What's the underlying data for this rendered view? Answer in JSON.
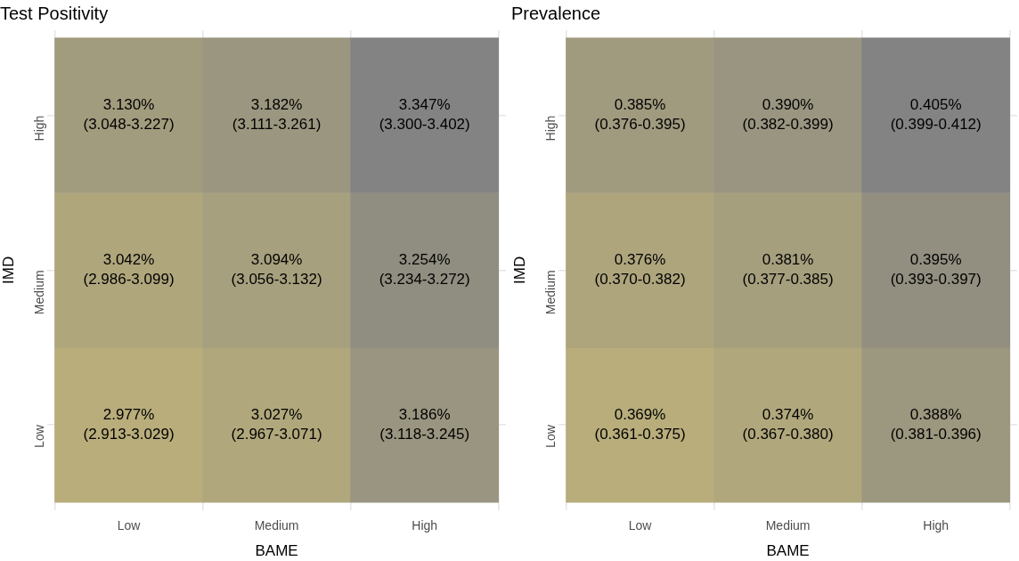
{
  "chart_data": [
    {
      "type": "heatmap",
      "title": "Test Positivity",
      "xlabel": "BAME",
      "ylabel": "IMD",
      "categories": [
        "Low",
        "Medium",
        "High"
      ],
      "y_categories": [
        "High",
        "Medium",
        "Low"
      ],
      "colors": [
        "#b8ad7b",
        "#838383"
      ],
      "grid": true,
      "cells": [
        [
          3.13,
          3.182,
          3.347
        ],
        [
          3.042,
          3.094,
          3.254
        ],
        [
          2.977,
          3.027,
          3.186
        ]
      ],
      "cell_labels": [
        [
          "3.130%",
          "3.182%",
          "3.347%"
        ],
        [
          "3.042%",
          "3.094%",
          "3.254%"
        ],
        [
          "2.977%",
          "3.027%",
          "3.186%"
        ]
      ],
      "annotations": [
        "(3.048-3.227)",
        "(3.111-3.261)",
        "(3.300-3.402)",
        "(2.986-3.099)",
        "(3.056-3.132)",
        "(3.234-3.272)",
        "(2.913-3.029)",
        "(2.967-3.071)",
        "(3.118-3.245)"
      ]
    },
    {
      "type": "heatmap",
      "title": "Prevalence",
      "xlabel": "BAME",
      "ylabel": "IMD",
      "categories": [
        "Low",
        "Medium",
        "High"
      ],
      "y_categories": [
        "High",
        "Medium",
        "Low"
      ],
      "colors": [
        "#b8ad7b",
        "#838383"
      ],
      "grid": true,
      "cells": [
        [
          0.385,
          0.39,
          0.405
        ],
        [
          0.376,
          0.381,
          0.395
        ],
        [
          0.369,
          0.374,
          0.388
        ]
      ],
      "cell_labels": [
        [
          "0.385%",
          "0.390%",
          "0.405%"
        ],
        [
          "0.376%",
          "0.381%",
          "0.395%"
        ],
        [
          "0.369%",
          "0.374%",
          "0.388%"
        ]
      ],
      "annotations": [
        "(0.376-0.395)",
        "(0.382-0.399)",
        "(0.399-0.412)",
        "(0.370-0.382)",
        "(0.377-0.385)",
        "(0.393-0.397)",
        "(0.361-0.375)",
        "(0.367-0.380)",
        "(0.381-0.396)"
      ]
    }
  ]
}
